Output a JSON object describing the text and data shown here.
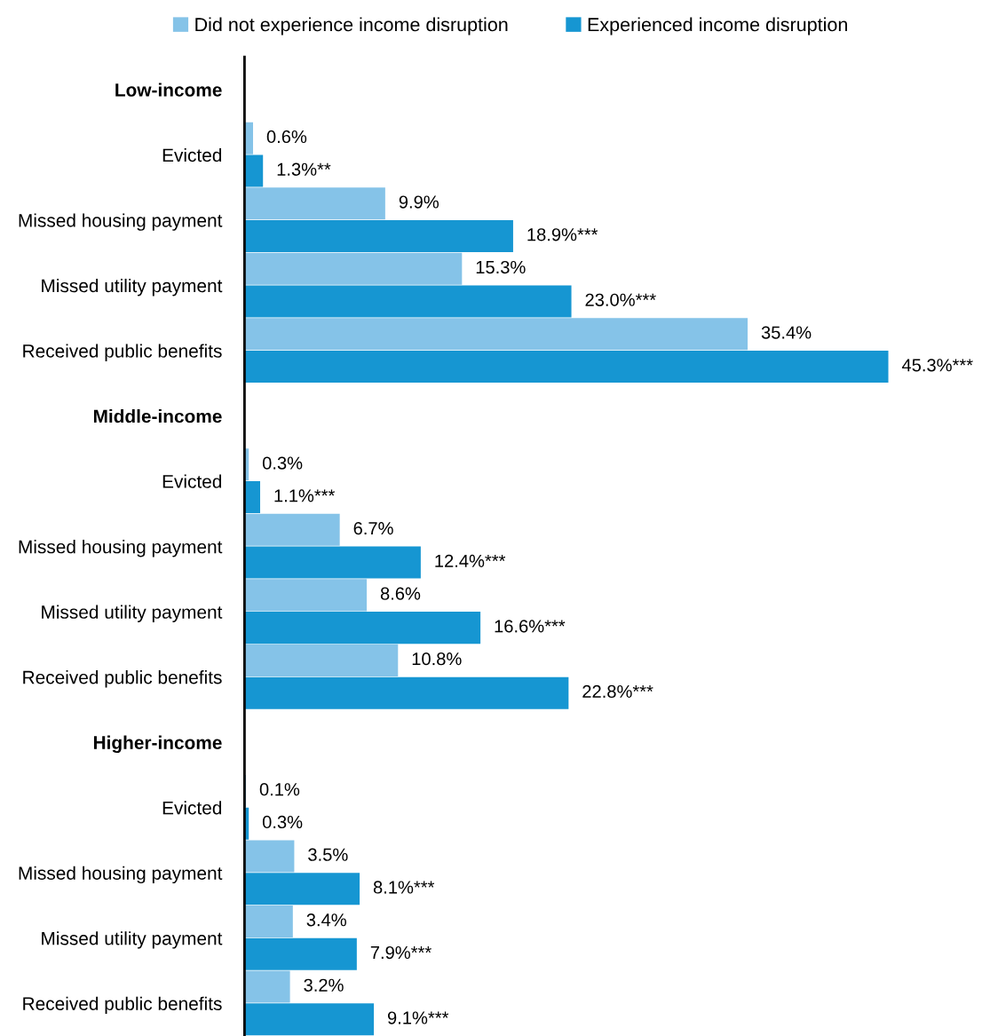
{
  "chart_data": {
    "type": "bar",
    "orientation": "horizontal",
    "categories": [
      "Low-income",
      "Evicted",
      "Missed housing payment",
      "Missed utility payment",
      "Received public benefits",
      "Middle-income",
      "Evicted",
      "Missed housing payment",
      "Missed utility payment",
      "Received public benefits",
      "Higher-income",
      "Evicted",
      "Missed housing payment",
      "Missed utility payment",
      "Received public benefits"
    ],
    "series": [
      {
        "name": "Did not experience income disruption",
        "color": "#85c3e8",
        "values": [
          null,
          0.6,
          9.9,
          15.3,
          35.4,
          null,
          0.3,
          6.7,
          8.6,
          10.8,
          null,
          0.1,
          3.5,
          3.4,
          3.2
        ],
        "value_labels": [
          null,
          "0.6%",
          "9.9%",
          "15.3%",
          "35.4%",
          null,
          "0.3%",
          "6.7%",
          "8.6%",
          "10.8%",
          null,
          "0.1%",
          "3.5%",
          "3.4%",
          "3.2%"
        ]
      },
      {
        "name": "Experienced income disruption",
        "color": "#1696d2",
        "values": [
          null,
          1.3,
          18.9,
          23.0,
          45.3,
          null,
          1.1,
          12.4,
          16.6,
          22.8,
          null,
          0.3,
          8.1,
          7.9,
          9.1
        ],
        "value_labels": [
          null,
          "1.3%**",
          "18.9%***",
          "23.0%***",
          "45.3%***",
          null,
          "1.1%***",
          "12.4%***",
          "16.6%***",
          "22.8%***",
          null,
          "0.3%",
          "8.1%***",
          "7.9%***",
          "9.1%***"
        ]
      }
    ],
    "tick_labels": "y",
    "grid": false,
    "legend": "top"
  }
}
